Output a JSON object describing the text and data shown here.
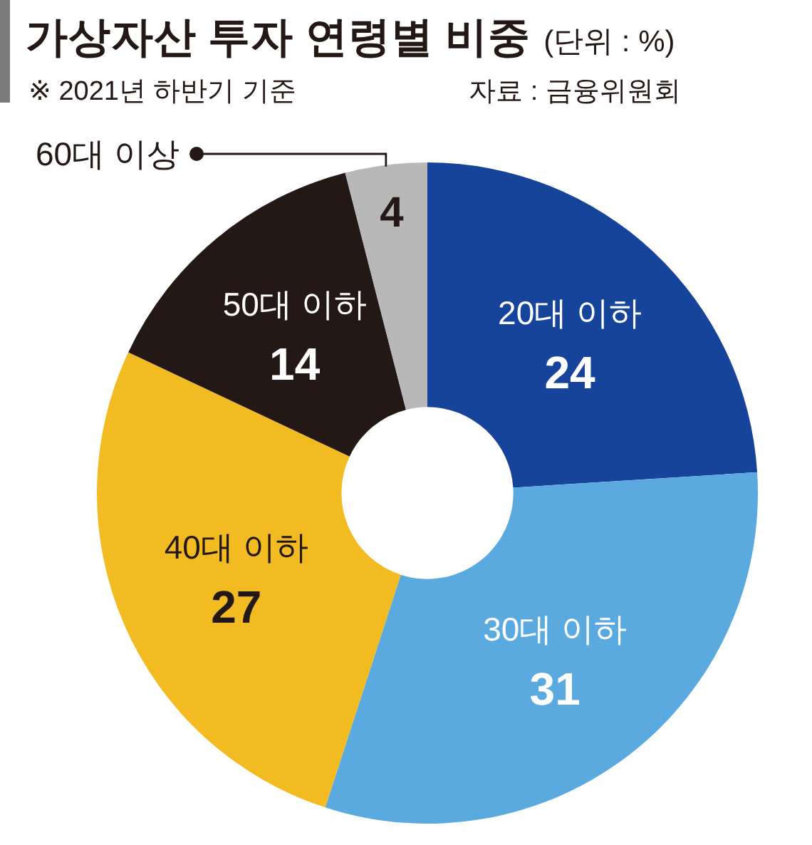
{
  "chart_data": {
    "type": "donut",
    "title": "가상자산 투자 연령별 비중",
    "subtitle": "(단위 : %)",
    "categories": [
      "20대 이하",
      "30대 이하",
      "40대 이하",
      "50대 이하",
      "60대 이상"
    ],
    "values": [
      24,
      31,
      27,
      14,
      4
    ],
    "colors": [
      "#17449b",
      "#5aaae0",
      "#f3bb22",
      "#231816",
      "#b8b8b8"
    ],
    "data_labels": true,
    "annotations": [
      "※ 2021년 하반기 기준",
      "자료 : 금융위원회"
    ]
  }
}
